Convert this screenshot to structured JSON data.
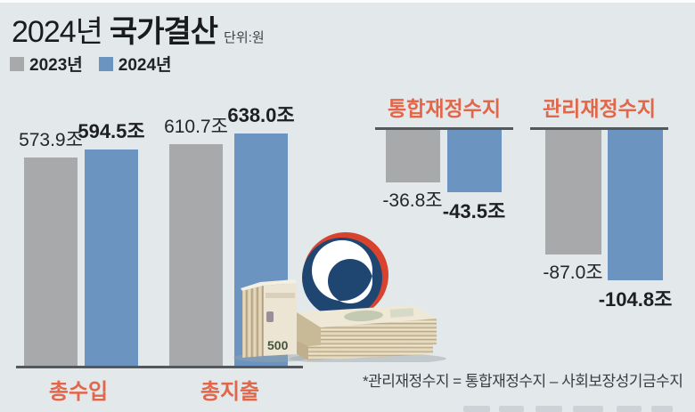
{
  "header": {
    "title_year": "2024년",
    "title_main": "국가결산",
    "unit_label": "단위:원",
    "legend": [
      {
        "label": "2023년",
        "color": "#a7a9ab"
      },
      {
        "label": "2024년",
        "color": "#6b94c0"
      }
    ]
  },
  "chart_data": [
    {
      "type": "bar",
      "title": "2024년 국가결산 - 총수입/총지출",
      "categories": [
        "총수입",
        "총지출"
      ],
      "series": [
        {
          "name": "2023년",
          "values": [
            573.9,
            610.7
          ],
          "color": "#a7a9ab"
        },
        {
          "name": "2024년",
          "values": [
            594.5,
            638.0
          ],
          "color": "#6b94c0"
        }
      ],
      "value_labels": [
        [
          "573.9조",
          "610.7조"
        ],
        [
          "594.5조",
          "638.0조"
        ]
      ],
      "unit": "조 원",
      "ylim": [
        0,
        638
      ],
      "grid": false,
      "legend_position": "top-left"
    },
    {
      "type": "bar",
      "title": "통합재정수지",
      "categories": [
        "통합재정수지"
      ],
      "series": [
        {
          "name": "2023년",
          "values": [
            -36.8
          ],
          "color": "#a7a9ab"
        },
        {
          "name": "2024년",
          "values": [
            -43.5
          ],
          "color": "#6b94c0"
        }
      ],
      "value_labels": [
        [
          "-36.8조"
        ],
        [
          "-43.5조"
        ]
      ],
      "unit": "조 원",
      "ylim": [
        -110,
        0
      ],
      "grid": false
    },
    {
      "type": "bar",
      "title": "관리재정수지",
      "categories": [
        "관리재정수지"
      ],
      "series": [
        {
          "name": "2023년",
          "values": [
            -87.0
          ],
          "color": "#a7a9ab"
        },
        {
          "name": "2024년",
          "values": [
            -104.8
          ],
          "color": "#6b94c0"
        }
      ],
      "value_labels": [
        [
          "-87.0조"
        ],
        [
          "-104.8조"
        ]
      ],
      "unit": "조 원",
      "ylim": [
        -110,
        0
      ],
      "grid": false
    }
  ],
  "footnote": "*관리재정수지 = 통합재정수지 – 사회보장성기금수지",
  "colors": {
    "background": "#e3e8eb",
    "bar_2023": "#a7a9ab",
    "bar_2024": "#6b94c0",
    "accent_orange": "#e2674a",
    "baseline": "#54585c",
    "title_text": "#191b1d"
  },
  "illustration": {
    "name": "korea-government-emblem-with-banknote-stacks",
    "banknote_text": "500"
  }
}
